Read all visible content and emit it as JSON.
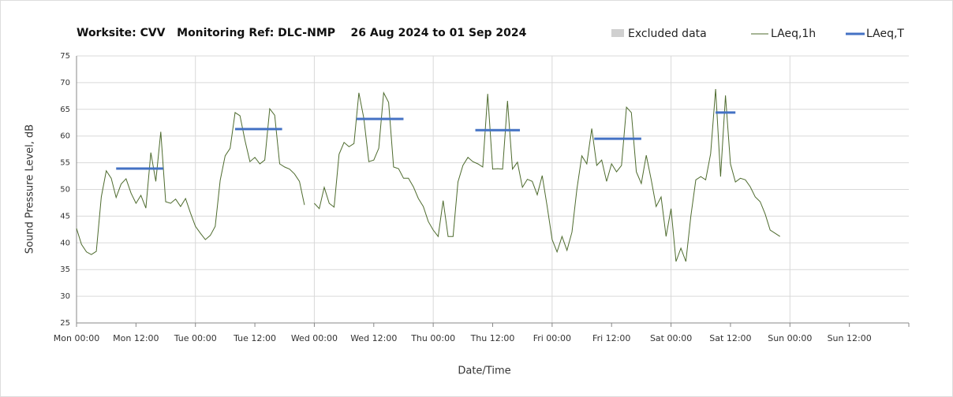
{
  "chart_data": {
    "type": "line",
    "title": "Worksite: CVV   Monitoring Ref: DLC-NMP    26 Aug 2024 to 01 Sep 2024",
    "xlabel": "Date/Time",
    "ylabel": "Sound Pressure Level, dB",
    "xlim": [
      0,
      168
    ],
    "ylim": [
      25,
      75
    ],
    "yticks": [
      25,
      30,
      35,
      40,
      45,
      50,
      55,
      60,
      65,
      70,
      75
    ],
    "xticks": [
      {
        "value": 0,
        "label": "Mon 00:00"
      },
      {
        "value": 12,
        "label": "Mon 12:00"
      },
      {
        "value": 24,
        "label": "Tue 00:00"
      },
      {
        "value": 36,
        "label": "Tue 12:00"
      },
      {
        "value": 48,
        "label": "Wed 00:00"
      },
      {
        "value": 60,
        "label": "Wed 12:00"
      },
      {
        "value": 72,
        "label": "Thu 00:00"
      },
      {
        "value": 84,
        "label": "Thu 12:00"
      },
      {
        "value": 96,
        "label": "Fri 00:00"
      },
      {
        "value": 108,
        "label": "Fri 12:00"
      },
      {
        "value": 120,
        "label": "Sat 00:00"
      },
      {
        "value": 132,
        "label": "Sat 12:00"
      },
      {
        "value": 144,
        "label": "Sun 00:00"
      },
      {
        "value": 156,
        "label": "Sun 12:00"
      }
    ],
    "grid": true,
    "excluded": {
      "name": "Excluded data",
      "color": "#d0d0d0",
      "values": []
    },
    "series": [
      {
        "name": "LAeq,1h",
        "color": "#4e6b2e",
        "x": [
          0,
          1,
          2,
          3,
          4,
          5,
          6,
          7,
          8,
          9,
          10,
          11,
          12,
          13,
          14,
          15,
          16,
          17,
          18,
          19,
          20,
          21,
          22,
          23,
          24,
          25,
          26,
          27,
          28,
          29,
          30,
          31,
          32,
          33,
          34,
          35,
          36,
          37,
          38,
          39,
          40,
          41,
          42,
          43,
          44,
          45,
          46,
          47,
          48,
          49,
          50,
          51,
          52,
          53,
          54,
          55,
          56,
          57,
          58,
          59,
          60,
          61,
          62,
          63,
          64,
          65,
          66,
          67,
          68,
          69,
          70,
          71,
          72,
          73,
          74,
          75,
          76,
          77,
          78,
          79,
          80,
          81,
          82,
          83,
          84,
          85,
          86,
          87,
          88,
          89,
          90,
          91,
          92,
          93,
          94,
          95,
          96,
          97,
          98,
          99,
          100,
          101,
          102,
          103,
          104,
          105,
          106,
          107,
          108,
          109,
          110,
          111,
          112,
          113,
          114,
          115,
          116,
          117,
          118,
          119,
          120,
          121,
          122,
          123,
          124,
          125,
          126,
          127,
          128,
          129,
          130,
          131,
          132,
          133,
          134,
          135,
          136,
          137,
          138,
          139,
          140,
          141,
          142
        ],
        "values": [
          42.7,
          39.7,
          38.3,
          37.8,
          38.4,
          48.6,
          53.5,
          52.1,
          48.5,
          51,
          52,
          49.3,
          47.4,
          48.9,
          46.5,
          56.9,
          51.5,
          60.8,
          47.7,
          47.4,
          48.2,
          46.8,
          48.3,
          45.6,
          43.1,
          41.8,
          40.6,
          41.4,
          43.1,
          51.7,
          56.3,
          57.7,
          64.4,
          63.8,
          59.2,
          55.2,
          56,
          54.8,
          55.5,
          65.1,
          63.9,
          54.8,
          54.2,
          53.8,
          52.9,
          51.5,
          47.1,
          null,
          47.4,
          46.4,
          50.4,
          47.4,
          46.7,
          56.6,
          58.8,
          58,
          58.6,
          68.1,
          63.3,
          55.2,
          55.5,
          57.7,
          68.1,
          66.3,
          54.2,
          53.9,
          52.1,
          52.1,
          50.5,
          48.3,
          46.8,
          44,
          42.4,
          41.2,
          47.9,
          41.2,
          41.2,
          51.4,
          54.5,
          56,
          55.2,
          54.8,
          54.2,
          67.9,
          53.8,
          53.9,
          53.8,
          66.6,
          53.8,
          55.1,
          50.4,
          51.9,
          51.5,
          49,
          52.6,
          46.8,
          40.6,
          38.3,
          41.2,
          38.6,
          42,
          50.1,
          56.3,
          54.8,
          61.4,
          54.5,
          55.5,
          51.5,
          54.8,
          53.3,
          54.5,
          65.4,
          64.4,
          53.3,
          51.1,
          56.4,
          51.8,
          46.8,
          48.6,
          41.2,
          46.4,
          36.5,
          39,
          36.5,
          45,
          51.8,
          52.4,
          51.8,
          56.7,
          68.8,
          52.4,
          67.6,
          54.8,
          51.4,
          52.1,
          51.8,
          50.5,
          48.6,
          47.7,
          45.4,
          42.4,
          41.8,
          41.2
        ]
      },
      {
        "name": "LAeq,T",
        "color": "#4472c4",
        "x_start": [
          8,
          32,
          56.5,
          80.5,
          104.5,
          129
        ],
        "x_end": [
          17.5,
          41.5,
          66,
          89.5,
          114,
          133
        ],
        "values": [
          53.9,
          61.3,
          63.2,
          61.1,
          59.5,
          64.4
        ]
      }
    ]
  }
}
